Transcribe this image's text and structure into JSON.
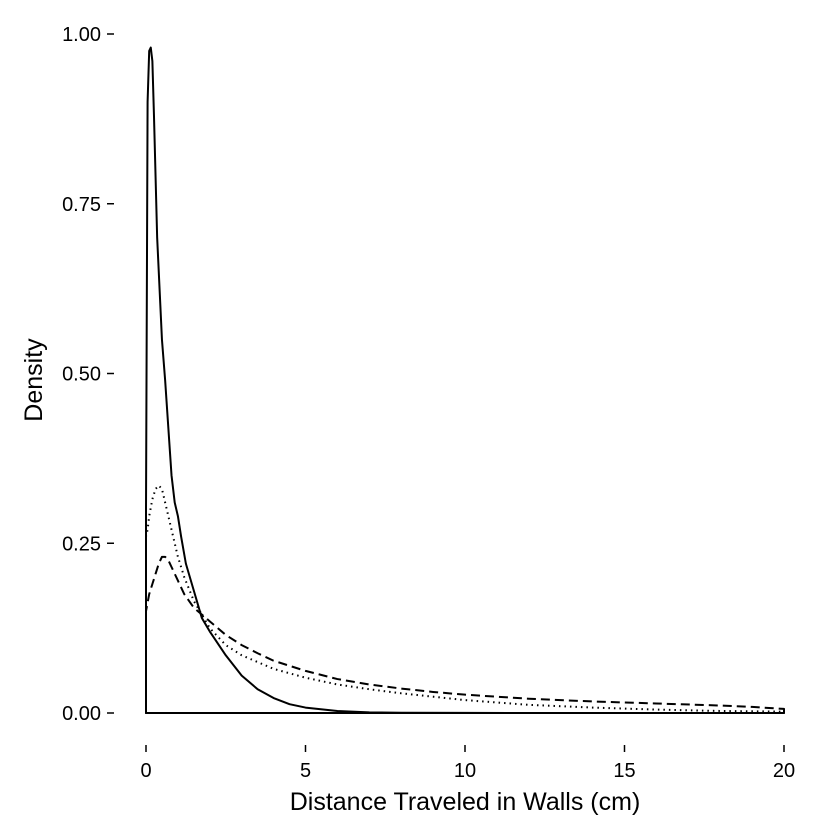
{
  "chart_data": {
    "type": "line",
    "title": "",
    "xlabel": "Distance Traveled in Walls (cm)",
    "ylabel": "Density",
    "xlim": [
      0,
      20
    ],
    "ylim": [
      0,
      1
    ],
    "x_ticks": [
      0,
      5,
      10,
      15,
      20
    ],
    "x_tick_labels": [
      "0",
      "5",
      "10",
      "15",
      "20"
    ],
    "y_ticks": [
      0,
      0.25,
      0.5,
      0.75,
      1
    ],
    "y_tick_labels": [
      "0.00",
      "0.25",
      "0.50",
      "0.75",
      "1.00"
    ],
    "grid": false,
    "legend": false,
    "series": [
      {
        "style": "solid",
        "x": [
          0,
          0.05,
          0.1,
          0.15,
          0.2,
          0.25,
          0.35,
          0.5,
          0.6,
          0.7,
          0.8,
          0.9,
          1.0,
          1.1,
          1.25,
          1.5,
          1.75,
          2.0,
          2.5,
          3.0,
          3.5,
          4.0,
          4.5,
          5.0,
          6.0,
          7.0,
          8.0,
          10.0,
          15.0,
          20.0
        ],
        "y": [
          0.3,
          0.9,
          0.975,
          0.98,
          0.96,
          0.88,
          0.7,
          0.55,
          0.49,
          0.42,
          0.35,
          0.31,
          0.29,
          0.26,
          0.22,
          0.18,
          0.14,
          0.12,
          0.085,
          0.055,
          0.035,
          0.022,
          0.013,
          0.008,
          0.003,
          0.001,
          0.0004,
          0.0001,
          0,
          0
        ]
      },
      {
        "style": "dotted",
        "x": [
          0,
          0.05,
          0.1,
          0.2,
          0.3,
          0.4,
          0.5,
          0.6,
          0.7,
          0.8,
          1.0,
          1.2,
          1.5,
          2.0,
          2.5,
          3.0,
          4.0,
          5.0,
          6.0,
          7.0,
          8.0,
          10.0,
          12.0,
          14.0,
          16.0,
          18.0,
          20.0
        ],
        "y": [
          0.26,
          0.27,
          0.29,
          0.315,
          0.33,
          0.335,
          0.33,
          0.31,
          0.29,
          0.27,
          0.23,
          0.2,
          0.165,
          0.125,
          0.1,
          0.085,
          0.065,
          0.052,
          0.042,
          0.035,
          0.029,
          0.019,
          0.012,
          0.008,
          0.005,
          0.003,
          0.002
        ]
      },
      {
        "style": "dashed",
        "x": [
          0,
          0.1,
          0.2,
          0.3,
          0.4,
          0.5,
          0.6,
          0.7,
          0.8,
          1.0,
          1.2,
          1.5,
          2.0,
          2.5,
          3.0,
          3.5,
          4.0,
          5.0,
          6.0,
          7.0,
          8.0,
          9.0,
          10.0,
          12.0,
          14.0,
          16.0,
          18.0,
          19.0,
          20.0
        ],
        "y": [
          0.15,
          0.175,
          0.19,
          0.205,
          0.22,
          0.23,
          0.23,
          0.225,
          0.215,
          0.195,
          0.175,
          0.155,
          0.135,
          0.115,
          0.1,
          0.088,
          0.077,
          0.062,
          0.05,
          0.042,
          0.036,
          0.031,
          0.027,
          0.021,
          0.017,
          0.014,
          0.011,
          0.009,
          0.006
        ]
      }
    ],
    "line_color": "#000000"
  }
}
